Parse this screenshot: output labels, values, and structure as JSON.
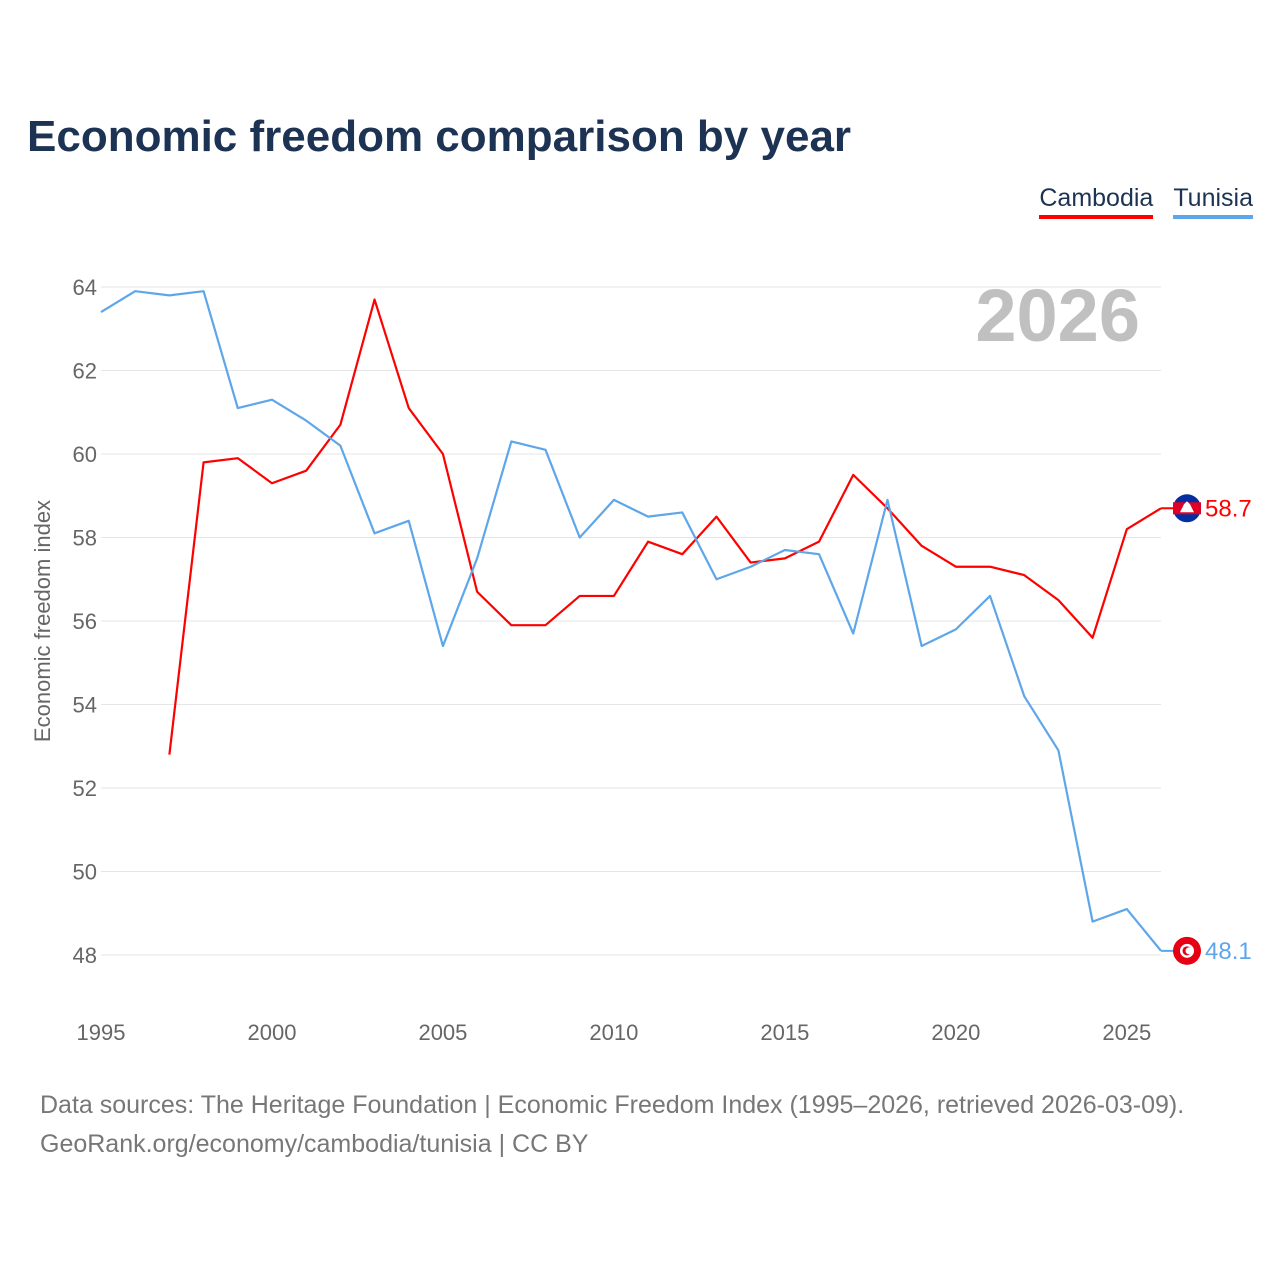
{
  "title": "Economic freedom comparison by year",
  "footer": {
    "line1": "Data sources: The Heritage Foundation | Economic Freedom Index (1995–2026, retrieved 2026-03-09).",
    "line2": "GeoRank.org/economy/cambodia/tunisia | CC BY"
  },
  "chart_data": {
    "type": "line",
    "title": "Economic freedom comparison by year",
    "xlabel": "",
    "ylabel": "Economic freedom index",
    "year_watermark": "2026",
    "xlim": [
      1995,
      2026
    ],
    "ylim": [
      47,
      65
    ],
    "xticks": [
      1995,
      2000,
      2005,
      2010,
      2015,
      2020,
      2025
    ],
    "yticks": [
      48,
      50,
      52,
      54,
      56,
      58,
      60,
      62,
      64
    ],
    "grid": true,
    "legend_position": "top-right",
    "series": [
      {
        "name": "Cambodia",
        "color": "#ff0000",
        "end_label": "58.7",
        "x": [
          1997,
          1998,
          1999,
          2000,
          2001,
          2002,
          2003,
          2004,
          2005,
          2006,
          2007,
          2008,
          2009,
          2010,
          2011,
          2012,
          2013,
          2014,
          2015,
          2016,
          2017,
          2018,
          2019,
          2020,
          2021,
          2022,
          2023,
          2024,
          2025,
          2026
        ],
        "values": [
          52.8,
          59.8,
          59.9,
          59.3,
          59.6,
          60.7,
          63.7,
          61.1,
          60.0,
          56.7,
          55.9,
          55.9,
          56.6,
          56.6,
          57.9,
          57.6,
          58.5,
          57.4,
          57.5,
          57.9,
          59.5,
          58.7,
          57.8,
          57.3,
          57.3,
          57.1,
          56.5,
          55.6,
          58.2,
          58.7
        ]
      },
      {
        "name": "Tunisia",
        "color": "#5ea6ea",
        "end_label": "48.1",
        "x": [
          1995,
          1996,
          1997,
          1998,
          1999,
          2000,
          2001,
          2002,
          2003,
          2004,
          2005,
          2006,
          2007,
          2008,
          2009,
          2010,
          2011,
          2012,
          2013,
          2014,
          2015,
          2016,
          2017,
          2018,
          2019,
          2020,
          2021,
          2022,
          2023,
          2024,
          2025,
          2026
        ],
        "values": [
          63.4,
          63.9,
          63.8,
          63.9,
          61.1,
          61.3,
          60.8,
          60.2,
          58.1,
          58.4,
          55.4,
          57.5,
          60.3,
          60.1,
          58.0,
          58.9,
          58.5,
          58.6,
          57.0,
          57.3,
          57.7,
          57.6,
          55.7,
          58.9,
          55.4,
          55.8,
          56.6,
          54.2,
          52.9,
          48.8,
          49.1,
          48.1
        ]
      }
    ]
  }
}
